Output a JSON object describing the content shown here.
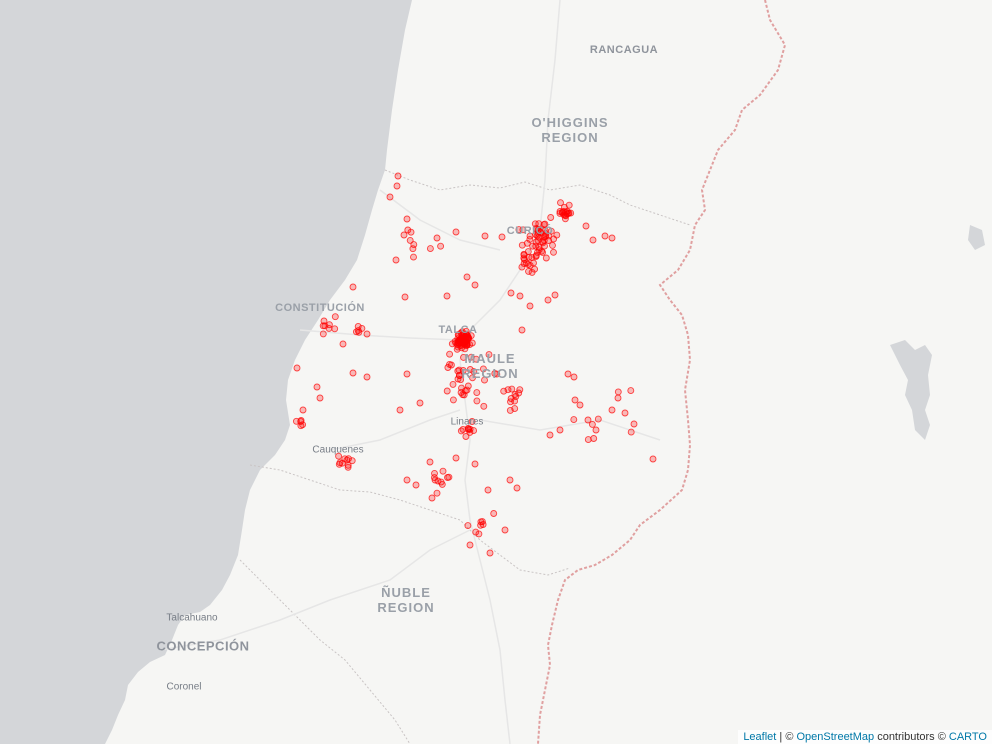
{
  "map": {
    "point_color": "#ff0000",
    "ocean_color": "#d4d6d9",
    "land_color": "#f6f6f4",
    "border_color": "#e8a2a2"
  },
  "labels": {
    "rancagua": "RANCAGUA",
    "ohiggins_1": "O'HIGGINS",
    "ohiggins_2": "REGION",
    "constitucion": "CONSTITUCIÓN",
    "curico": "CURICÓ",
    "talca": "TALCA",
    "maule_1": "MAULE",
    "maule_2": "REGION",
    "linares": "Linares",
    "cauquenes": "Cauquenes",
    "nuble_1": "ÑUBLE",
    "nuble_2": "REGION",
    "talcahuano": "Talcahuano",
    "concepcion": "CONCEPCIÓN",
    "coronel": "Coronel"
  },
  "attribution": {
    "leaflet": "Leaflet",
    "sep1": " | © ",
    "osm": "OpenStreetMap",
    "contributors": " contributors © ",
    "carto": "CARTO"
  }
}
